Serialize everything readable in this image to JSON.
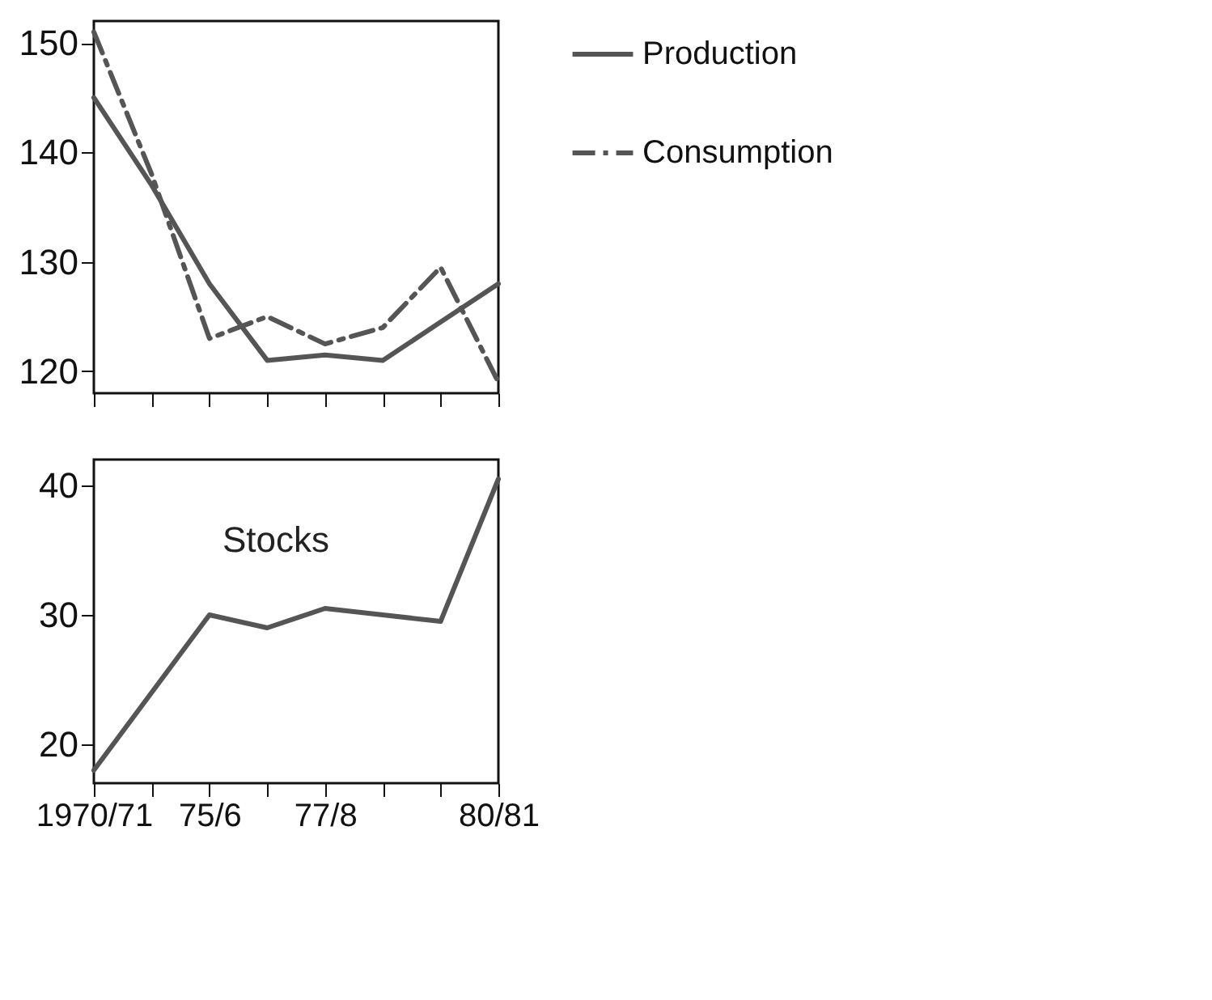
{
  "chart_data": [
    {
      "type": "line",
      "categories": [
        null,
        null,
        null,
        null,
        null,
        null,
        null,
        null
      ],
      "series": [
        {
          "name": "Production",
          "color": "#555555",
          "line_style": "solid",
          "values": [
            145,
            137,
            128,
            121,
            121.5,
            121,
            124.5,
            128
          ]
        },
        {
          "name": "Consumption",
          "color": "#555555",
          "line_style": "dashed",
          "values": [
            151,
            138,
            123,
            125,
            122.5,
            124,
            129.5,
            119
          ]
        }
      ],
      "ylim": [
        118,
        152
      ],
      "yticks": [
        120,
        130,
        140,
        150
      ],
      "legend": "top right",
      "tick_labels": "y",
      "grid": false
    },
    {
      "type": "line",
      "categories": [
        "1970/71",
        null,
        "75/6",
        null,
        "77/8",
        null,
        null,
        "80/81"
      ],
      "series": [
        {
          "name": "Stocks",
          "color": "#555555",
          "values": [
            18,
            24,
            30,
            29,
            30.5,
            30,
            29.5,
            40.5
          ]
        }
      ],
      "ylim": [
        17,
        42
      ],
      "yticks": [
        20,
        30,
        40
      ],
      "grid": false
    }
  ]
}
